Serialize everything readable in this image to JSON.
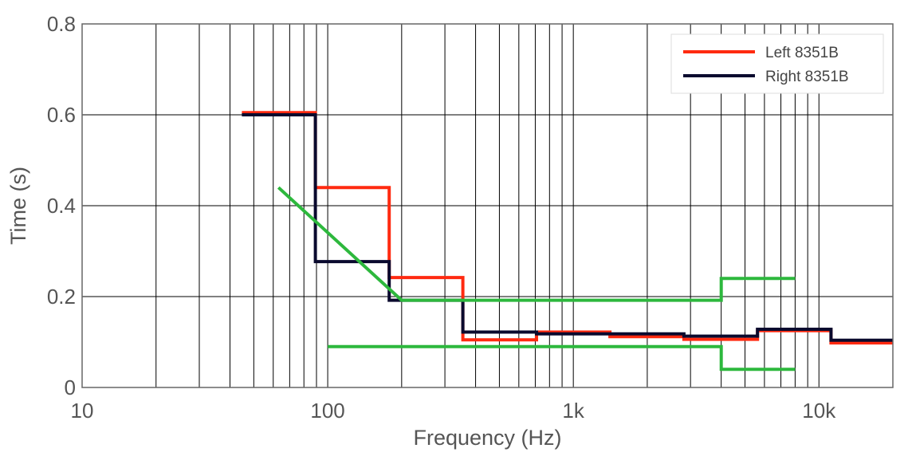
{
  "chart_data": {
    "type": "line",
    "title": "",
    "xlabel": "Frequency (Hz)",
    "ylabel": "Time (s)",
    "x_scale": "log",
    "xlim": [
      10,
      20000
    ],
    "ylim": [
      0,
      0.8
    ],
    "x_ticks": [
      {
        "value": 10,
        "label": "10"
      },
      {
        "value": 100,
        "label": "100"
      },
      {
        "value": 1000,
        "label": "1k"
      },
      {
        "value": 10000,
        "label": "10k"
      }
    ],
    "y_ticks": [
      {
        "value": 0,
        "label": "0"
      },
      {
        "value": 0.2,
        "label": "0.2"
      },
      {
        "value": 0.4,
        "label": "0.4"
      },
      {
        "value": 0.6,
        "label": "0.6"
      },
      {
        "value": 0.8,
        "label": "0.8"
      }
    ],
    "grid": true,
    "legend_position": "top-right",
    "series": [
      {
        "name": "Left 8351B",
        "color": "#ff2a10",
        "shape": "step",
        "x": [
          44.7,
          89.1,
          89.1,
          178,
          178,
          355,
          355,
          708,
          708,
          1410,
          1410,
          2820,
          2820,
          5620,
          5620,
          11200,
          11200,
          20000
        ],
        "y": [
          0.605,
          0.605,
          0.44,
          0.44,
          0.242,
          0.242,
          0.105,
          0.105,
          0.122,
          0.122,
          0.112,
          0.112,
          0.106,
          0.106,
          0.125,
          0.125,
          0.098,
          0.098
        ]
      },
      {
        "name": "Right 8351B",
        "color": "#0a0a2e",
        "shape": "step",
        "x": [
          44.7,
          89.1,
          89.1,
          178,
          178,
          355,
          355,
          708,
          708,
          1410,
          1410,
          2820,
          2820,
          5620,
          5620,
          11200,
          11200,
          20000
        ],
        "y": [
          0.6,
          0.6,
          0.277,
          0.277,
          0.192,
          0.192,
          0.122,
          0.122,
          0.118,
          0.118,
          0.118,
          0.118,
          0.113,
          0.113,
          0.128,
          0.128,
          0.104,
          0.104
        ]
      },
      {
        "color": "#2db83d",
        "x": [
          63,
          200,
          4000,
          4000,
          8000
        ],
        "y": [
          0.44,
          0.192,
          0.192,
          0.24,
          0.24
        ]
      },
      {
        "color": "#2db83d",
        "x": [
          100,
          4000,
          4000,
          8000
        ],
        "y": [
          0.09,
          0.09,
          0.04,
          0.04
        ]
      }
    ]
  }
}
